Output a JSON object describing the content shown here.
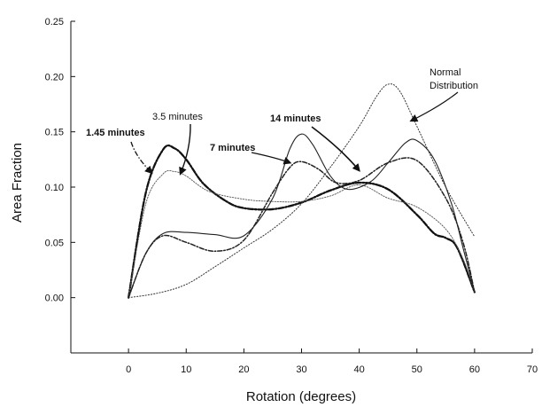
{
  "chart_data": {
    "type": "line",
    "title": "",
    "xlabel": "Rotation (degrees)",
    "ylabel": "Area Fraction",
    "xlim": [
      -10,
      70
    ],
    "ylim": [
      -0.05,
      0.25
    ],
    "xticks": [
      "0",
      "10",
      "20",
      "30",
      "40",
      "50",
      "60",
      "70"
    ],
    "yticks": [
      "0.00",
      "0.05",
      "0.10",
      "0.15",
      "0.20",
      "0.25"
    ],
    "grid": false,
    "legend": "none",
    "series": [
      {
        "name": "1.45 minutes",
        "style": "dash-dot-heavy",
        "x": [
          0,
          3,
          6,
          8,
          10,
          13,
          17,
          20,
          25,
          30,
          35,
          40,
          45,
          50,
          53,
          55,
          57,
          60
        ],
        "y": [
          0.0,
          0.095,
          0.134,
          0.135,
          0.125,
          0.103,
          0.087,
          0.081,
          0.08,
          0.086,
          0.097,
          0.104,
          0.098,
          0.075,
          0.058,
          0.054,
          0.045,
          0.005
        ]
      },
      {
        "name": "3.5 minutes",
        "style": "thin-dotted",
        "x": [
          0,
          3,
          6,
          8,
          10,
          14,
          20,
          25,
          30,
          35,
          40,
          45,
          50,
          55,
          58,
          60
        ],
        "y": [
          0.0,
          0.085,
          0.112,
          0.114,
          0.11,
          0.096,
          0.089,
          0.087,
          0.087,
          0.092,
          0.102,
          0.09,
          0.082,
          0.062,
          0.035,
          0.005
        ]
      },
      {
        "name": "7 minutes",
        "style": "dash-dot",
        "x": [
          0,
          3,
          6,
          10,
          15,
          20,
          25,
          28,
          30,
          33,
          36,
          40,
          45,
          50,
          55,
          58,
          60
        ],
        "y": [
          0.0,
          0.04,
          0.056,
          0.05,
          0.042,
          0.052,
          0.095,
          0.118,
          0.123,
          0.116,
          0.104,
          0.106,
          0.122,
          0.124,
          0.09,
          0.05,
          0.005
        ]
      },
      {
        "name": "14 minutes",
        "style": "solid",
        "x": [
          0,
          3,
          6,
          10,
          15,
          20,
          25,
          28,
          30,
          32,
          35,
          38,
          42,
          45,
          48,
          50,
          53,
          56,
          58,
          60
        ],
        "y": [
          0.0,
          0.04,
          0.058,
          0.059,
          0.057,
          0.056,
          0.09,
          0.135,
          0.148,
          0.138,
          0.11,
          0.098,
          0.105,
          0.122,
          0.14,
          0.142,
          0.125,
          0.085,
          0.045,
          0.005
        ]
      },
      {
        "name": "Normal Distribution",
        "style": "dotted",
        "x": [
          0,
          5,
          10,
          15,
          20,
          25,
          30,
          35,
          40,
          43,
          45,
          47,
          50,
          55,
          60
        ],
        "y": [
          0.0,
          0.004,
          0.012,
          0.028,
          0.045,
          0.062,
          0.085,
          0.118,
          0.155,
          0.182,
          0.193,
          0.187,
          0.155,
          0.1,
          0.055
        ]
      }
    ],
    "annotations": [
      {
        "text": "1.45 minutes",
        "arrow_to": [
          4,
          0.113
        ]
      },
      {
        "text": "3.5 minutes",
        "arrow_to": [
          9,
          0.112
        ]
      },
      {
        "text": "7 minutes",
        "arrow_to": [
          28,
          0.122
        ]
      },
      {
        "text": "14 minutes",
        "arrow_to": [
          40,
          0.115
        ]
      },
      {
        "text": "Normal",
        "arrow_to": [
          49,
          0.16
        ]
      },
      {
        "text": "Distribution",
        "arrow_to": null
      }
    ]
  }
}
